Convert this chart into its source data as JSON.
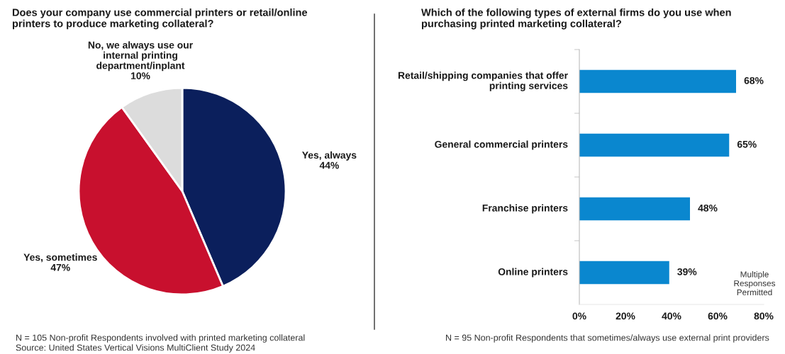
{
  "chart_data": [
    {
      "type": "pie",
      "title": "Does your company use commercial printers or retail/online printers to produce marketing collateral?",
      "categories": [
        "Yes, always",
        "Yes, sometimes",
        "No, we always use our internal printing department/inplant"
      ],
      "values": [
        44,
        47,
        10
      ],
      "colors": [
        "#0b1f5c",
        "#c8102e",
        "#dcdcdc"
      ],
      "value_labels": [
        "44%",
        "47%",
        "10%"
      ],
      "annotations": [
        "N = 105 Non-profit Respondents involved with printed marketing collateral",
        "Source: United States Vertical Visions MultiClient Study 2024"
      ]
    },
    {
      "type": "bar",
      "orientation": "horizontal",
      "title": "Which of the following types of external firms do you use when purchasing printed marketing collateral?",
      "categories": [
        "Retail/shipping companies that offer printing services",
        "General commercial printers",
        "Franchise printers",
        "Online printers"
      ],
      "values": [
        68,
        65,
        48,
        39
      ],
      "color": "#0a87cf",
      "value_labels": [
        "68%",
        "65%",
        "48%",
        "39%"
      ],
      "xlim": [
        0,
        80
      ],
      "xticks": [
        {
          "value": 0,
          "label": "0%"
        },
        {
          "value": 20,
          "label": "20%"
        },
        {
          "value": 40,
          "label": "40%"
        },
        {
          "value": 60,
          "label": "60%"
        },
        {
          "value": 80,
          "label": "80%"
        }
      ],
      "grid": false,
      "annotations": [
        "Multiple Responses Permitted",
        "N = 95 Non-profit Respondents that sometimes/always use external print providers"
      ]
    }
  ]
}
